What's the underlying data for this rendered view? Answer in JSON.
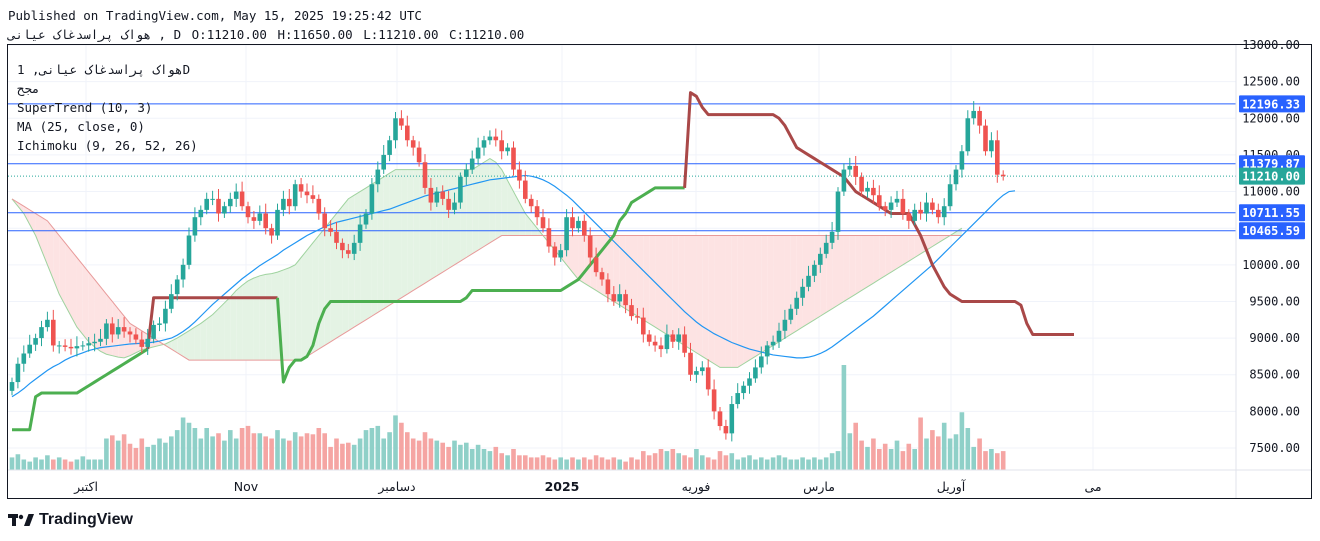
{
  "header": {
    "published": "Published on TradingView.com, May 15, 2025 19:25:42 UTC",
    "symbol_line": "هواک پراسدغاک عیانی , D",
    "ohlc": [
      "O:11210.00",
      "H:11650.00",
      "L:11210.00",
      "C:11210.00"
    ]
  },
  "legend": {
    "symbol": "هواک پراسدغاک عیانی, 1D",
    "exchange": "مجح",
    "supertrend": "SuperTrend (10, 3)",
    "ma": "MA (25, close, 0)",
    "ichimoku": "Ichimoku (9, 26, 52, 26)"
  },
  "brand": {
    "name": "TradingView"
  },
  "colors": {
    "up": "#26a69a",
    "down": "#ef5350",
    "up_vol": "#8fd0c8",
    "down_vol": "#f5a5a3",
    "supertrend_up": "#4caf50",
    "supertrend_down": "#a94848",
    "ma": "#2196f3",
    "cloud_bull": "#e4f3e4",
    "cloud_bear": "#fde3e3",
    "hline": "#2962ff"
  },
  "chart_data": {
    "type": "candlestick",
    "ylim": [
      7200,
      13000
    ],
    "y_ticks": [
      "13000.00",
      "12500.00",
      "12000.00",
      "11500.00",
      "11000.00",
      "10500.00",
      "10000.00",
      "9500.00",
      "9000.00",
      "8500.00",
      "8000.00",
      "7500.00"
    ],
    "x_ticks": [
      "اکتبر",
      "Nov",
      "دسامبر",
      "2025",
      "فوریه",
      "مارس",
      "آوریل",
      "می"
    ],
    "price_labels": [
      {
        "value": 12196.33,
        "text": "12196.33"
      },
      {
        "value": 11379.87,
        "text": "11379.87"
      },
      {
        "value": 11210.0,
        "text": "11210.00",
        "last": true
      },
      {
        "value": 10711.55,
        "text": "10711.55"
      },
      {
        "value": 10465.59,
        "text": "10465.59"
      }
    ],
    "close": [
      8400,
      8650,
      8790,
      8910,
      9000,
      9150,
      9250,
      8900,
      8900,
      8880,
      8860,
      8890,
      8900,
      8930,
      8950,
      8990,
      9200,
      9050,
      9150,
      9090,
      9050,
      8980,
      8880,
      8990,
      9180,
      9200,
      9400,
      9600,
      9800,
      10000,
      10400,
      10650,
      10750,
      10900,
      10900,
      10700,
      10800,
      10900,
      11000,
      10800,
      10650,
      10600,
      10700,
      10500,
      10400,
      10750,
      10900,
      10800,
      11100,
      11000,
      10950,
      10900,
      10700,
      10500,
      10450,
      10300,
      10200,
      10150,
      10300,
      10550,
      10700,
      11100,
      11300,
      11500,
      11700,
      12000,
      11900,
      11700,
      11600,
      11400,
      11050,
      10850,
      11000,
      10900,
      10750,
      10850,
      11200,
      11300,
      11450,
      11600,
      11700,
      11750,
      11700,
      11550,
      11600,
      11300,
      11150,
      10900,
      10800,
      10650,
      10500,
      10250,
      10100,
      10200,
      10650,
      10500,
      10600,
      10400,
      10100,
      9900,
      9800,
      9600,
      9500,
      9600,
      9450,
      9300,
      9280,
      9050,
      8950,
      8900,
      8850,
      9050,
      8950,
      9050,
      8800,
      8500,
      8550,
      8600,
      8300,
      8000,
      7800,
      7700,
      8100,
      8250,
      8350,
      8450,
      8600,
      8750,
      8900,
      8950,
      9100,
      9250,
      9400,
      9550,
      9700,
      9850,
      10000,
      10150,
      10300,
      10450,
      11000,
      11300,
      11350,
      11200,
      11000,
      11050,
      10950,
      10800,
      10750,
      10850,
      10900,
      10700,
      10600,
      10750,
      10700,
      10850,
      10750,
      10650,
      10800,
      11100,
      11300,
      11550,
      12000,
      12100,
      11900,
      11550,
      11700,
      11230,
      11210
    ],
    "volume_rel": [
      0.12,
      0.15,
      0.1,
      0.08,
      0.12,
      0.1,
      0.14,
      0.1,
      0.12,
      0.1,
      0.08,
      0.1,
      0.13,
      0.1,
      0.1,
      0.1,
      0.3,
      0.33,
      0.28,
      0.34,
      0.25,
      0.21,
      0.3,
      0.22,
      0.24,
      0.3,
      0.26,
      0.32,
      0.38,
      0.5,
      0.45,
      0.4,
      0.3,
      0.4,
      0.32,
      0.35,
      0.28,
      0.38,
      0.3,
      0.4,
      0.42,
      0.35,
      0.35,
      0.32,
      0.3,
      0.38,
      0.3,
      0.28,
      0.36,
      0.32,
      0.35,
      0.34,
      0.4,
      0.35,
      0.22,
      0.3,
      0.25,
      0.26,
      0.24,
      0.3,
      0.38,
      0.4,
      0.42,
      0.3,
      0.36,
      0.52,
      0.45,
      0.36,
      0.3,
      0.28,
      0.36,
      0.3,
      0.28,
      0.26,
      0.22,
      0.28,
      0.24,
      0.26,
      0.2,
      0.24,
      0.2,
      0.18,
      0.22,
      0.16,
      0.14,
      0.2,
      0.14,
      0.14,
      0.12,
      0.12,
      0.14,
      0.12,
      0.1,
      0.12,
      0.1,
      0.12,
      0.1,
      0.12,
      0.1,
      0.14,
      0.12,
      0.1,
      0.12,
      0.1,
      0.08,
      0.12,
      0.1,
      0.18,
      0.14,
      0.16,
      0.2,
      0.18,
      0.2,
      0.16,
      0.14,
      0.12,
      0.2,
      0.14,
      0.12,
      0.1,
      0.18,
      0.14,
      0.16,
      0.1,
      0.12,
      0.14,
      0.1,
      0.12,
      0.1,
      0.12,
      0.14,
      0.12,
      0.1,
      0.1,
      0.12,
      0.1,
      0.12,
      0.1,
      0.12,
      0.16,
      0.18,
      1.0,
      0.35,
      0.45,
      0.28,
      0.22,
      0.3,
      0.2,
      0.25,
      0.2,
      0.28,
      0.18,
      0.25,
      0.2,
      0.5,
      0.3,
      0.38,
      0.32,
      0.45,
      0.3,
      0.34,
      0.55,
      0.4,
      0.22,
      0.3,
      0.18,
      0.2,
      0.16,
      0.18,
      0.15,
      0.16,
      0.24
    ],
    "ma25": [
      8200,
      8250,
      8310,
      8380,
      8440,
      8500,
      8560,
      8610,
      8650,
      8700,
      8740,
      8770,
      8800,
      8830,
      8850,
      8870,
      8880,
      8890,
      8900,
      8910,
      8920,
      8925,
      8930,
      8935,
      8945,
      8960,
      8980,
      9000,
      9040,
      9090,
      9150,
      9220,
      9300,
      9380,
      9460,
      9530,
      9600,
      9670,
      9740,
      9810,
      9870,
      9930,
      9990,
      10040,
      10090,
      10140,
      10200,
      10250,
      10300,
      10350,
      10400,
      10440,
      10480,
      10520,
      10550,
      10580,
      10600,
      10620,
      10640,
      10660,
      10680,
      10700,
      10720,
      10740,
      10760,
      10790,
      10820,
      10850,
      10880,
      10910,
      10940,
      10960,
      10980,
      11000,
      11020,
      11040,
      11060,
      11080,
      11100,
      11120,
      11140,
      11160,
      11170,
      11180,
      11190,
      11200,
      11210,
      11220,
      11210,
      11190,
      11160,
      11120,
      11070,
      11010,
      10950,
      10880,
      10800,
      10720,
      10640,
      10560,
      10480,
      10400,
      10320,
      10240,
      10160,
      10080,
      10000,
      9920,
      9840,
      9760,
      9680,
      9600,
      9520,
      9440,
      9360,
      9290,
      9220,
      9160,
      9110,
      9060,
      9020,
      8980,
      8940,
      8910,
      8880,
      8850,
      8830,
      8810,
      8790,
      8770,
      8760,
      8750,
      8740,
      8730,
      8730,
      8740,
      8760,
      8790,
      8830,
      8880,
      8940,
      9000,
      9060,
      9120,
      9180,
      9240,
      9300,
      9370,
      9440,
      9510,
      9580,
      9650,
      9720,
      9790,
      9860,
      9930,
      10000,
      10080,
      10160,
      10240,
      10320,
      10400,
      10480,
      10560,
      10640,
      10720,
      10800,
      10880,
      10950,
      11000,
      11010
    ],
    "supertrend": [
      7750,
      7750,
      7750,
      7750,
      8200,
      8250,
      8250,
      8250,
      8250,
      8250,
      8250,
      8250,
      8300,
      8350,
      8400,
      8450,
      8500,
      8550,
      8600,
      8650,
      8700,
      8750,
      8800,
      8850,
      9550,
      9550,
      9550,
      9550,
      9550,
      9550,
      9550,
      9550,
      9550,
      9550,
      9550,
      9550,
      9550,
      9550,
      9550,
      9550,
      9550,
      9550,
      9550,
      9550,
      9550,
      9550,
      8400,
      8600,
      8700,
      8700,
      8750,
      8900,
      9200,
      9400,
      9500,
      9500,
      9500,
      9500,
      9500,
      9500,
      9500,
      9500,
      9500,
      9500,
      9500,
      9500,
      9500,
      9500,
      9500,
      9500,
      9500,
      9500,
      9500,
      9500,
      9500,
      9500,
      9500,
      9550,
      9650,
      9650,
      9650,
      9650,
      9650,
      9650,
      9650,
      9650,
      9650,
      9650,
      9650,
      9650,
      9650,
      9650,
      9650,
      9650,
      9700,
      9750,
      9800,
      9900,
      10000,
      10100,
      10200,
      10300,
      10400,
      10600,
      10700,
      10850,
      10900,
      10950,
      11000,
      11050,
      11050,
      11050,
      11050,
      11050,
      11050,
      12350,
      12300,
      12150,
      12050,
      12050,
      12050,
      12050,
      12050,
      12050,
      12050,
      12050,
      12050,
      12050,
      12050,
      12050,
      12000,
      11900,
      11750,
      11600,
      11550,
      11500,
      11450,
      11400,
      11350,
      11300,
      11250,
      11200,
      11100,
      11000,
      10950,
      10900,
      10850,
      10800,
      10750,
      10700,
      10700,
      10700,
      10700,
      10550,
      10400,
      10200,
      10000,
      9850,
      9700,
      9600,
      9550,
      9500,
      9500,
      9500,
      9500,
      9500,
      9500,
      9500,
      9500,
      9500,
      9500,
      9450,
      9200,
      9050,
      9050,
      9050,
      9050,
      9050,
      9050,
      9050,
      9050
    ],
    "supertrend_dir": [
      1,
      1,
      1,
      1,
      1,
      1,
      1,
      1,
      1,
      1,
      1,
      1,
      1,
      1,
      1,
      1,
      1,
      1,
      1,
      1,
      1,
      1,
      1,
      1,
      -1,
      -1,
      -1,
      -1,
      -1,
      -1,
      -1,
      -1,
      -1,
      -1,
      -1,
      -1,
      -1,
      -1,
      -1,
      -1,
      -1,
      -1,
      -1,
      -1,
      -1,
      -1,
      1,
      1,
      1,
      1,
      1,
      1,
      1,
      1,
      1,
      1,
      1,
      1,
      1,
      1,
      1,
      1,
      1,
      1,
      1,
      1,
      1,
      1,
      1,
      1,
      1,
      1,
      1,
      1,
      1,
      1,
      1,
      1,
      1,
      1,
      1,
      1,
      1,
      1,
      1,
      1,
      1,
      1,
      1,
      1,
      1,
      1,
      1,
      1,
      1,
      1,
      1,
      1,
      1,
      1,
      1,
      1,
      1,
      1,
      1,
      1,
      1,
      1,
      1,
      1,
      1,
      1,
      1,
      1,
      1,
      -1,
      -1,
      -1,
      -1,
      -1,
      -1,
      -1,
      -1,
      -1,
      -1,
      -1,
      -1,
      -1,
      -1,
      -1,
      -1,
      -1,
      -1,
      -1,
      -1,
      -1,
      -1,
      -1,
      -1,
      -1,
      -1,
      -1,
      -1,
      -1,
      -1,
      -1,
      -1,
      -1,
      -1,
      -1,
      -1,
      -1,
      -1,
      -1,
      -1,
      -1,
      -1,
      -1,
      -1,
      -1,
      -1,
      -1,
      -1,
      -1,
      -1,
      -1,
      -1,
      -1,
      -1,
      -1,
      -1,
      -1,
      -1,
      -1,
      -1,
      -1,
      -1,
      -1,
      -1,
      -1,
      -1,
      -1,
      -1,
      -1,
      -1,
      -1
    ],
    "cloud_span_a": [
      10900,
      10800,
      10700,
      10550,
      10400,
      10200,
      10000,
      9800,
      9600,
      9450,
      9300,
      9150,
      9050,
      8950,
      8880,
      8820,
      8780,
      8760,
      8740,
      8730,
      8760,
      8800,
      8840,
      8860,
      8880,
      8900,
      8920,
      8960,
      9000,
      9050,
      9100,
      9150,
      9200,
      9260,
      9320,
      9400,
      9480,
      9560,
      9650,
      9720,
      9780,
      9820,
      9850,
      9870,
      9880,
      9900,
      9930,
      9960,
      10000,
      10100,
      10200,
      10300,
      10400,
      10500,
      10600,
      10700,
      10800,
      10900,
      10950,
      11000,
      11050,
      11100,
      11150,
      11200,
      11250,
      11300,
      11300,
      11300,
      11300,
      11300,
      11300,
      11300,
      11300,
      11300,
      11300,
      11300,
      11300,
      11300,
      11300,
      11350,
      11400,
      11450,
      11400,
      11300,
      11150,
      11000,
      10850,
      10700,
      10600,
      10500,
      10400,
      10300,
      10200,
      10100,
      10000,
      9900,
      9800,
      9750,
      9700,
      9650,
      9600,
      9550,
      9500,
      9450,
      9400,
      9350,
      9300,
      9250,
      9200,
      9150,
      9100,
      9050,
      9000,
      8950,
      8900,
      8850,
      8800,
      8750,
      8700,
      8650,
      8600,
      8600,
      8600,
      8600,
      8650,
      8700,
      8750,
      8800,
      8850,
      8900,
      8950,
      9000,
      9050,
      9100,
      9150,
      9200,
      9250,
      9300,
      9350,
      9400,
      9450,
      9500,
      9550,
      9600,
      9650,
      9700,
      9750,
      9800,
      9850,
      9900,
      9950,
      10000,
      10050,
      10100,
      10150,
      10200,
      10250,
      10300,
      10350,
      10400,
      10450,
      10500
    ],
    "cloud_span_b": [
      10900,
      10850,
      10800,
      10750,
      10700,
      10650,
      10600,
      10500,
      10400,
      10300,
      10200,
      10100,
      10000,
      9900,
      9800,
      9700,
      9600,
      9500,
      9400,
      9300,
      9200,
      9150,
      9100,
      9050,
      9000,
      8950,
      8900,
      8850,
      8800,
      8750,
      8700,
      8700,
      8700,
      8700,
      8700,
      8700,
      8700,
      8700,
      8700,
      8700,
      8700,
      8700,
      8700,
      8700,
      8700,
      8700,
      8700,
      8700,
      8700,
      8700,
      8750,
      8800,
      8850,
      8900,
      8950,
      9000,
      9050,
      9100,
      9150,
      9200,
      9250,
      9300,
      9350,
      9400,
      9450,
      9500,
      9550,
      9600,
      9650,
      9700,
      9750,
      9800,
      9850,
      9900,
      9950,
      10000,
      10050,
      10100,
      10150,
      10200,
      10250,
      10300,
      10350,
      10400,
      10400,
      10400,
      10400,
      10400,
      10400,
      10400,
      10400,
      10400,
      10400,
      10400,
      10400,
      10400,
      10400,
      10400,
      10400,
      10400,
      10400,
      10400,
      10400,
      10400,
      10400,
      10400,
      10400,
      10400,
      10400,
      10400,
      10400,
      10400,
      10400,
      10400,
      10400,
      10400,
      10400,
      10400,
      10400,
      10400,
      10400,
      10400,
      10400,
      10400,
      10400,
      10400,
      10400,
      10400,
      10400,
      10400,
      10400,
      10400,
      10400,
      10400,
      10400,
      10400,
      10400,
      10400,
      10400,
      10400,
      10400,
      10400,
      10400,
      10400,
      10400,
      10400,
      10400,
      10400,
      10400,
      10400,
      10400,
      10400,
      10400,
      10400,
      10400,
      10400,
      10400,
      10400,
      10400,
      10400,
      10400,
      10400,
      10400,
      10400,
      10400,
      10400
    ]
  }
}
